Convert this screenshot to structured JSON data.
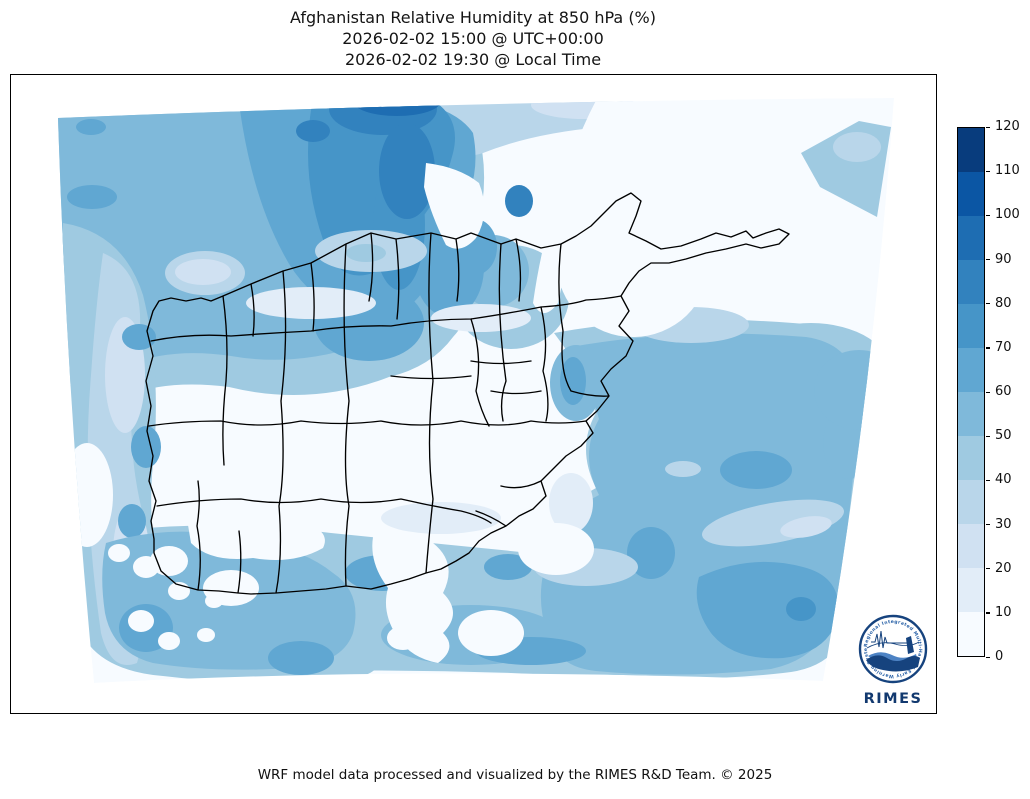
{
  "title": {
    "line1": "Afghanistan Relative Humidity at 850 hPa (%)",
    "line2": "2026-02-02 15:00 @ UTC+00:00",
    "line3": "2026-02-02 19:30 @ Local Time"
  },
  "caption": "WRF model data processed and visualized by the RIMES R&D Team. © 2025",
  "colorbar": {
    "min": 0,
    "max": 120,
    "tick_step": 10,
    "ticks": [
      0,
      10,
      20,
      30,
      40,
      50,
      60,
      70,
      80,
      90,
      100,
      110,
      120
    ],
    "bin_colors_bottom_to_top": [
      "#f7fbff",
      "#e2edf8",
      "#d0e1f2",
      "#b9d6ea",
      "#9fcae1",
      "#7fb9da",
      "#60a7d2",
      "#4695c8",
      "#3282be",
      "#1e6db2",
      "#0b56a4",
      "#083c7d"
    ],
    "outline_color": "#000000"
  },
  "map": {
    "region": "Afghanistan",
    "variable": "Relative Humidity",
    "level": "850 hPa",
    "unit": "%",
    "colormap": "Blues",
    "boundary_color": "#000000"
  },
  "logo": {
    "label": "RIMES",
    "arc_text": "Regional Integrated Multi-Hazard Early Warning System",
    "primary_color": "#16437e"
  },
  "chart_data": {
    "type": "heatmap",
    "title": "Afghanistan Relative Humidity at 850 hPa (%)",
    "valid_time_utc": "2026-02-02 15:00 @ UTC+00:00",
    "valid_time_local": "2026-02-02 19:30 @ Local Time",
    "unit": "%",
    "pressure_level_hPa": 850,
    "colormap": "Blues",
    "colorbar_levels": [
      0,
      10,
      20,
      30,
      40,
      50,
      60,
      70,
      80,
      90,
      100,
      110,
      120
    ],
    "value_range_displayed": [
      0,
      100
    ],
    "legend_position": "right",
    "regions_qualitative": [
      {
        "area": "north-central top of domain",
        "rh_pct": "80-100"
      },
      {
        "area": "northwest quadrant",
        "rh_pct": "50-70"
      },
      {
        "area": "west edge band",
        "rh_pct": "20-40 with 60-70 spots"
      },
      {
        "area": "central Afghanistan interior",
        "rh_pct": "0-20"
      },
      {
        "area": "northeast Badakhshan / Wakhan and upper-right",
        "rh_pct": "0-10"
      },
      {
        "area": "upper-right corner patch",
        "rh_pct": "30-50"
      },
      {
        "area": "southeast of Afghanistan lower-right mass",
        "rh_pct": "40-70 with 70-80 core"
      },
      {
        "area": "southwest bottom strip",
        "rh_pct": "40-70"
      }
    ]
  }
}
